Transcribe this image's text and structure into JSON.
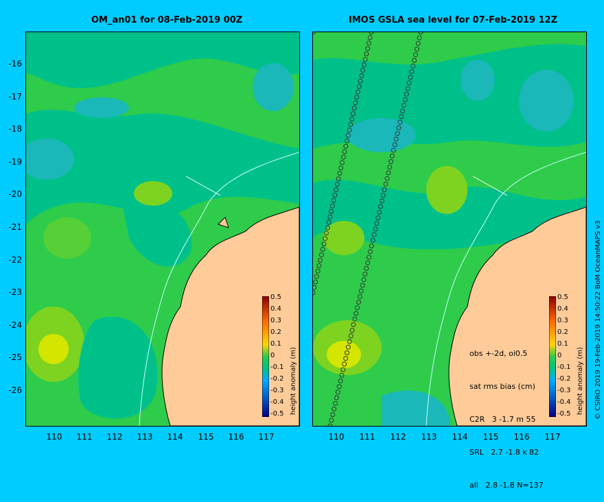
{
  "left_panel": {
    "title": "OM_an01 for 08-Feb-2019 00Z",
    "colorbar_label": "height anomaly (m)"
  },
  "right_panel": {
    "title": "IMOS GSLA sea level  for 07-Feb-2019 12Z",
    "colorbar_label": "height anomaly (m)",
    "stats_lines": [
      "obs +-2d, oi0.5",
      "sat rms bias (cm)",
      "C2R   3 -1.7 m 55",
      "SRL   2.7 -1.8 k 82",
      "all   2.8 -1.8 N=137"
    ]
  },
  "lat_ticks": [
    "-16",
    "-17",
    "-18",
    "-19",
    "-20",
    "-21",
    "-22",
    "-23",
    "-24",
    "-25",
    "-26"
  ],
  "lon_ticks": [
    "110",
    "111",
    "112",
    "113",
    "114",
    "115",
    "116",
    "117"
  ],
  "colorbar_ticks": [
    "0.5",
    "0.4",
    "0.3",
    "0.2",
    "0.1",
    "0",
    "-0.1",
    "-0.2",
    "-0.3",
    "-0.4",
    "-0.5"
  ],
  "credit": "© CSIRO 2019   19-Feb-2019 14:50:22 BoM OceanMAPS v3",
  "colors": {
    "background": "#00ccff",
    "land": "#ffcc99",
    "field_green": "#2ecc4a",
    "field_teal": "#00c08a",
    "field_cyan": "#1ab8b8",
    "field_lime": "#7ed321",
    "field_yellow": "#d4e600"
  }
}
